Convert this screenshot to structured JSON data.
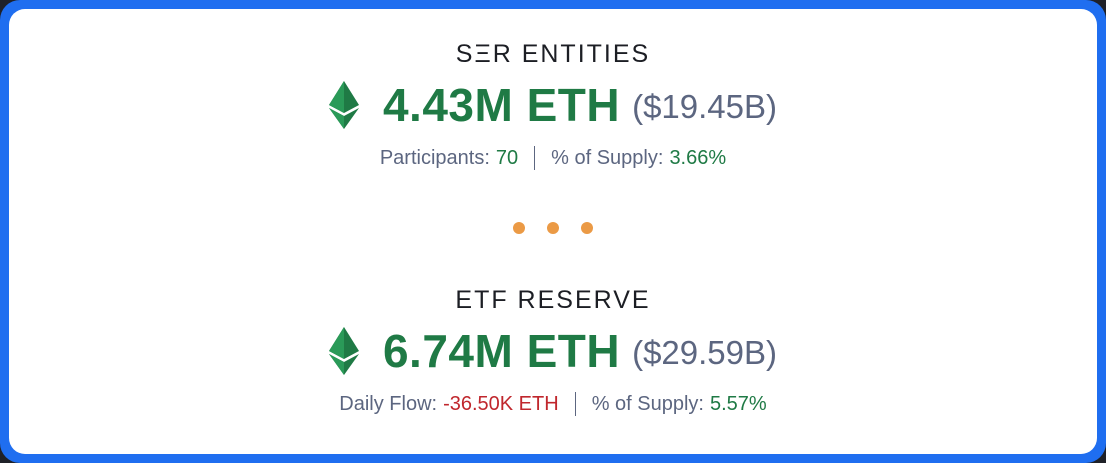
{
  "sections": [
    {
      "label": "SΞR ENTITIES",
      "amount": "4.43M ETH",
      "usd": "($19.45B)",
      "stat1_label": "Participants:",
      "stat1_value": "70",
      "stat2_label": "% of Supply:",
      "stat2_value": "3.66%"
    },
    {
      "label": "ETF RESERVE",
      "amount": "6.74M ETH",
      "usd": "($29.59B)",
      "stat1_label": "Daily Flow:",
      "stat1_value": "-36.50K ETH",
      "stat2_label": "% of Supply:",
      "stat2_value": "5.57%"
    }
  ],
  "colors": {
    "frame": "#1f6ef0",
    "positive": "#1f7a45",
    "negative": "#c0272d",
    "muted": "#5c6680",
    "dots": "#eb9a45"
  },
  "icons": {
    "currency": "ethereum-icon",
    "divider": "ellipsis-dots"
  }
}
